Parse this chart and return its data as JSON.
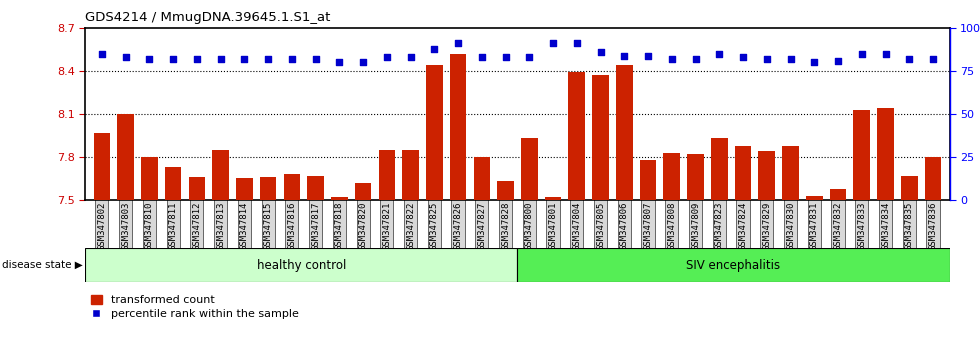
{
  "title": "GDS4214 / MmugDNA.39645.1.S1_at",
  "samples": [
    "GSM347802",
    "GSM347803",
    "GSM347810",
    "GSM347811",
    "GSM347812",
    "GSM347813",
    "GSM347814",
    "GSM347815",
    "GSM347816",
    "GSM347817",
    "GSM347818",
    "GSM347820",
    "GSM347821",
    "GSM347822",
    "GSM347825",
    "GSM347826",
    "GSM347827",
    "GSM347828",
    "GSM347800",
    "GSM347801",
    "GSM347804",
    "GSM347805",
    "GSM347806",
    "GSM347807",
    "GSM347808",
    "GSM347809",
    "GSM347823",
    "GSM347824",
    "GSM347829",
    "GSM347830",
    "GSM347831",
    "GSM347832",
    "GSM347833",
    "GSM347834",
    "GSM347835",
    "GSM347836"
  ],
  "bar_values": [
    7.97,
    8.1,
    7.8,
    7.73,
    7.66,
    7.85,
    7.65,
    7.66,
    7.68,
    7.67,
    7.52,
    7.62,
    7.85,
    7.85,
    8.44,
    8.52,
    7.8,
    7.63,
    7.93,
    7.52,
    8.39,
    8.37,
    8.44,
    7.78,
    7.83,
    7.82,
    7.93,
    7.88,
    7.84,
    7.88,
    7.53,
    7.58,
    8.13,
    8.14,
    7.67,
    7.8
  ],
  "percentile_values": [
    85,
    83,
    82,
    82,
    82,
    82,
    82,
    82,
    82,
    82,
    80,
    80,
    83,
    83,
    88,
    91,
    83,
    83,
    83,
    91,
    91,
    86,
    84,
    84,
    82,
    82,
    85,
    83,
    82,
    82,
    80,
    81,
    85,
    85,
    82,
    82
  ],
  "healthy_count": 18,
  "bar_color": "#cc2200",
  "percentile_color": "#0000cc",
  "healthy_color": "#ccffcc",
  "siv_color": "#55ee55",
  "ylim_left": [
    7.5,
    8.7
  ],
  "ylim_right": [
    0,
    100
  ],
  "yticks_left": [
    7.5,
    7.8,
    8.1,
    8.4,
    8.7
  ],
  "yticks_right": [
    0,
    25,
    50,
    75,
    100
  ],
  "ytick_labels_right": [
    "0",
    "25",
    "50",
    "75",
    "100%"
  ],
  "grid_values": [
    7.8,
    8.1,
    8.4
  ],
  "legend_bar_label": "transformed count",
  "legend_pct_label": "percentile rank within the sample",
  "disease_state_label": "disease state",
  "healthy_label": "healthy control",
  "siv_label": "SIV encephalitis"
}
